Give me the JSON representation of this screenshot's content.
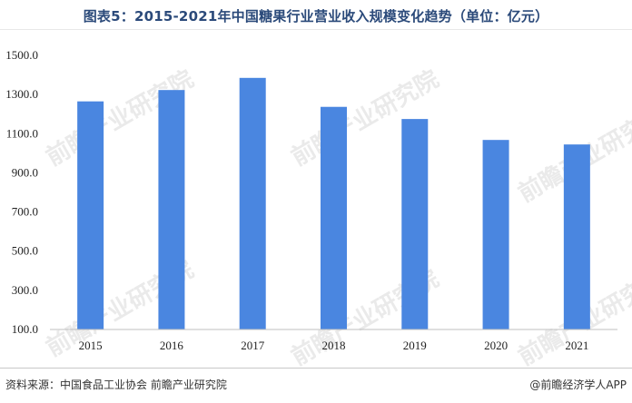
{
  "header": {
    "title": "图表5：2015-2021年中国糖果行业营业收入规模变化趋势（单位：亿元）"
  },
  "footer": {
    "source": "资料来源：中国食品工业协会 前瞻产业研究院",
    "brand": "@前瞻经济学人APP"
  },
  "watermark": "前瞻产业研究院",
  "colors": {
    "bar": "#4a86e0",
    "axis": "#bfbfbf"
  },
  "chart_data": {
    "type": "bar",
    "categories": [
      "2015",
      "2016",
      "2017",
      "2018",
      "2019",
      "2020",
      "2021"
    ],
    "values": [
      1265,
      1323,
      1385,
      1237,
      1175,
      1068,
      1045
    ],
    "ylim": [
      100,
      1500
    ],
    "yticks": [
      "100.0",
      "300.0",
      "500.0",
      "700.0",
      "900.0",
      "1100.0",
      "1300.0",
      "1500.0"
    ],
    "grid": false,
    "legend": "none"
  }
}
